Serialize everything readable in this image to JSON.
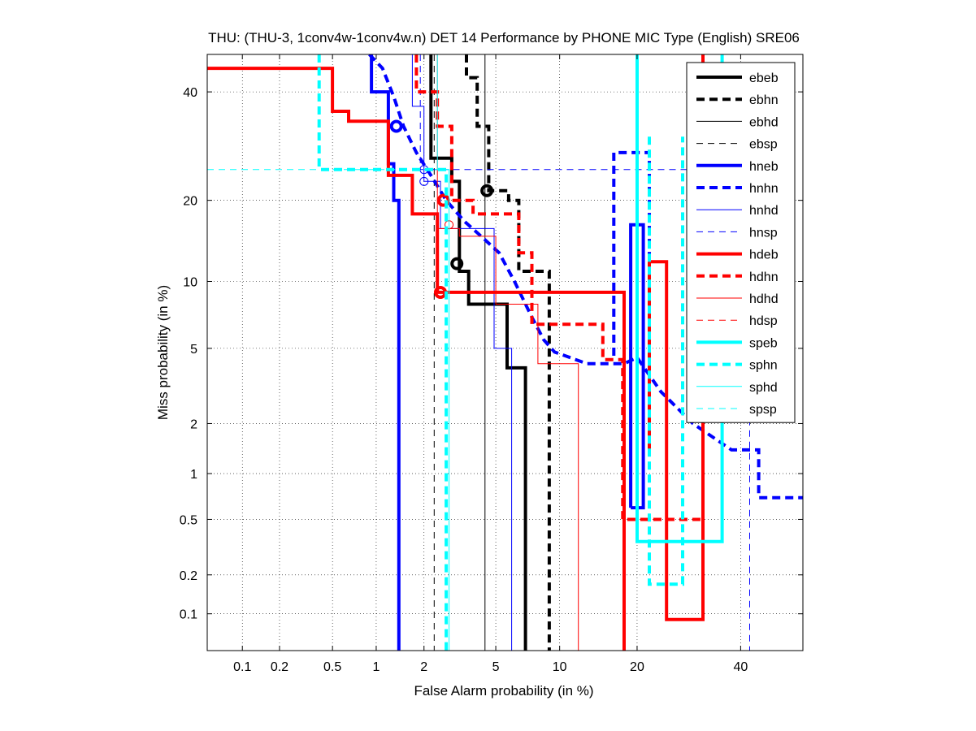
{
  "chart_data": {
    "type": "line",
    "title": "THU: (THU-3, 1conv4w-1conv4w.n) DET 14 Performance by PHONE MIC Type (English) SRE06",
    "xlabel": "False Alarm probability (in %)",
    "ylabel": "Miss probability (in %)",
    "x_scale": "probit",
    "y_scale": "probit",
    "xlim": [
      0.05,
      54
    ],
    "ylim": [
      0.05,
      48
    ],
    "x_ticks": [
      0.1,
      0.2,
      0.5,
      1,
      2,
      5,
      10,
      20,
      40
    ],
    "x_tick_labels": [
      "0.1",
      "0.2",
      "0.5",
      "1",
      "2",
      "5",
      "10",
      "20",
      "40"
    ],
    "y_ticks": [
      0.1,
      0.2,
      0.5,
      1,
      2,
      5,
      10,
      20,
      40
    ],
    "y_tick_labels": [
      "0.1",
      "0.2",
      "0.5",
      "1",
      "2",
      "5",
      "10",
      "20",
      "40"
    ],
    "grid": true,
    "legend_position": "top-right",
    "series": [
      {
        "name": "ebeb",
        "color": "#000000",
        "style": "solid",
        "weight": "thick",
        "points": [
          [
            2.2,
            48
          ],
          [
            2.2,
            27
          ],
          [
            2.9,
            27
          ],
          [
            2.9,
            23
          ],
          [
            3.2,
            23
          ],
          [
            3.2,
            11
          ],
          [
            3.6,
            11
          ],
          [
            3.6,
            8
          ],
          [
            5.7,
            8
          ],
          [
            5.7,
            4
          ],
          [
            7,
            4
          ],
          [
            7,
            0.05
          ]
        ],
        "dcf": [
          3.1,
          11.8
        ]
      },
      {
        "name": "ebhn",
        "color": "#000000",
        "style": "dashed",
        "weight": "thick",
        "points": [
          [
            3.5,
            48
          ],
          [
            3.5,
            43
          ],
          [
            4,
            43
          ],
          [
            4,
            33
          ],
          [
            4.6,
            33
          ],
          [
            4.6,
            21.5
          ],
          [
            5.8,
            21.5
          ],
          [
            5.8,
            20
          ],
          [
            6.5,
            20
          ],
          [
            6.5,
            11
          ],
          [
            9,
            11
          ],
          [
            9,
            0.05
          ]
        ],
        "dcf": [
          4.5,
          21.5
        ]
      },
      {
        "name": "ebhd",
        "color": "#000000",
        "style": "solid",
        "weight": "thin",
        "points": [
          [
            4.4,
            48
          ],
          [
            4.4,
            0.05
          ]
        ]
      },
      {
        "name": "ebsp",
        "color": "#000000",
        "style": "dashed",
        "weight": "thin",
        "points": [
          [
            2.3,
            48
          ],
          [
            2.3,
            0.05
          ]
        ]
      },
      {
        "name": "hneb",
        "color": "#0000ff",
        "style": "solid",
        "weight": "thick",
        "points": [
          [
            0.93,
            48
          ],
          [
            0.93,
            40
          ],
          [
            1.2,
            40
          ],
          [
            1.2,
            26
          ],
          [
            1.3,
            26
          ],
          [
            1.3,
            20
          ],
          [
            1.4,
            20
          ],
          [
            1.4,
            0.05
          ]
        ],
        "dcf": [
          1.35,
          33
        ],
        "extra": [
          [
            19,
            0.6
          ],
          [
            19,
            16.5
          ],
          [
            21,
            16.5
          ],
          [
            21,
            0.6
          ],
          [
            19,
            0.6
          ]
        ]
      },
      {
        "name": "hnhn",
        "color": "#0000ff",
        "style": "dashed",
        "weight": "thick",
        "points": [
          [
            0.9,
            48
          ],
          [
            1.1,
            45
          ],
          [
            1.3,
            39
          ],
          [
            1.5,
            33
          ],
          [
            1.8,
            28
          ],
          [
            2.2,
            24
          ],
          [
            2.7,
            20
          ],
          [
            3.4,
            17
          ],
          [
            4.2,
            15
          ],
          [
            5.2,
            13
          ],
          [
            6.2,
            10
          ],
          [
            7.5,
            7
          ],
          [
            8.5,
            5.5
          ],
          [
            9.5,
            4.8
          ],
          [
            13,
            4.2
          ],
          [
            18,
            4.2
          ],
          [
            20,
            4.5
          ],
          [
            24,
            3
          ],
          [
            30,
            2
          ],
          [
            38,
            1.4
          ],
          [
            44,
            1.4
          ],
          [
            44,
            0.7
          ],
          [
            54,
            0.7
          ]
        ],
        "extra": [
          [
            16.5,
            4.6
          ],
          [
            16.5,
            28
          ],
          [
            22,
            28
          ],
          [
            22,
            2.2
          ]
        ]
      },
      {
        "name": "hnhd",
        "color": "#0000ff",
        "style": "solid",
        "weight": "thin",
        "points": [
          [
            1.7,
            48
          ],
          [
            1.7,
            37
          ],
          [
            2,
            37
          ],
          [
            2,
            23
          ],
          [
            2.5,
            23
          ],
          [
            2.5,
            16
          ],
          [
            4.9,
            16
          ],
          [
            4.9,
            5
          ],
          [
            6,
            5
          ],
          [
            6,
            0.05
          ]
        ],
        "dcf": [
          2,
          23
        ]
      },
      {
        "name": "hnsp",
        "color": "#0000ff",
        "style": "dashed",
        "weight": "thin",
        "points": [
          [
            1.9,
            48
          ],
          [
            1.9,
            25
          ],
          [
            42,
            25
          ],
          [
            42,
            0.05
          ]
        ],
        "dcf": [
          2,
          25
        ]
      },
      {
        "name": "hdeb",
        "color": "#ff0000",
        "style": "solid",
        "weight": "thick",
        "points": [
          [
            0.05,
            45
          ],
          [
            0.5,
            45
          ],
          [
            0.5,
            36
          ],
          [
            0.65,
            36
          ],
          [
            0.65,
            34
          ],
          [
            1.2,
            34
          ],
          [
            1.2,
            24
          ],
          [
            1.7,
            24
          ],
          [
            1.7,
            18
          ],
          [
            2.4,
            18
          ],
          [
            2.4,
            9
          ],
          [
            18,
            9
          ],
          [
            18,
            0.05
          ]
        ],
        "dcf": [
          2.5,
          9
        ],
        "extra": [
          [
            22,
            1.4
          ],
          [
            22,
            12
          ],
          [
            25,
            12
          ],
          [
            25,
            0.09
          ],
          [
            32,
            0.09
          ],
          [
            32,
            48
          ]
        ]
      },
      {
        "name": "hdhn",
        "color": "#ff0000",
        "style": "dashed",
        "weight": "thick",
        "points": [
          [
            1.8,
            48
          ],
          [
            1.8,
            40
          ],
          [
            2.4,
            40
          ],
          [
            2.4,
            33
          ],
          [
            2.9,
            33
          ],
          [
            2.9,
            20
          ],
          [
            3.8,
            20
          ],
          [
            3.8,
            18
          ],
          [
            6.5,
            18
          ],
          [
            6.5,
            13
          ],
          [
            7.5,
            13
          ],
          [
            7.5,
            6.5
          ],
          [
            15,
            6.5
          ],
          [
            15,
            4.4
          ],
          [
            17.8,
            4.4
          ],
          [
            17.8,
            0.5
          ],
          [
            32,
            0.5
          ],
          [
            32,
            48
          ]
        ],
        "dcf": [
          2.6,
          20
        ]
      },
      {
        "name": "hdhd",
        "color": "#ff0000",
        "style": "solid",
        "weight": "thin",
        "points": [
          [
            2.4,
            48
          ],
          [
            2.4,
            16
          ],
          [
            3.2,
            16
          ],
          [
            3.2,
            15
          ],
          [
            5,
            15
          ],
          [
            5,
            8
          ],
          [
            8,
            8
          ],
          [
            8,
            4.2
          ],
          [
            12,
            4.2
          ],
          [
            12,
            0.05
          ]
        ],
        "dcf": [
          2.8,
          16.5
        ]
      },
      {
        "name": "hdsp",
        "color": "#ff0000",
        "style": "dashed",
        "weight": "thin",
        "points": [
          [
            0.05,
            48
          ],
          [
            54,
            48
          ]
        ]
      },
      {
        "name": "speb",
        "color": "#00ffff",
        "style": "solid",
        "weight": "thick",
        "points": [
          [
            20,
            48
          ],
          [
            20,
            0.35
          ],
          [
            36,
            0.35
          ],
          [
            36,
            48
          ]
        ]
      },
      {
        "name": "sphn",
        "color": "#00ffff",
        "style": "dashed",
        "weight": "thick",
        "points": [
          [
            0.4,
            48
          ],
          [
            0.4,
            25
          ],
          [
            2.7,
            25
          ],
          [
            2.7,
            0.05
          ]
        ],
        "extra": [
          [
            22,
            31
          ],
          [
            22,
            0.17
          ],
          [
            28,
            0.17
          ],
          [
            28,
            31
          ]
        ]
      },
      {
        "name": "sphd",
        "color": "#00ffff",
        "style": "solid",
        "weight": "thin",
        "points": [
          [
            2.4,
            48
          ],
          [
            2.4,
            25
          ],
          [
            2.8,
            25
          ],
          [
            2.8,
            0.05
          ]
        ]
      },
      {
        "name": "spsp",
        "color": "#00ffff",
        "style": "dashed",
        "weight": "thin",
        "points": [
          [
            0.05,
            25
          ],
          [
            2.7,
            25
          ]
        ]
      }
    ]
  }
}
